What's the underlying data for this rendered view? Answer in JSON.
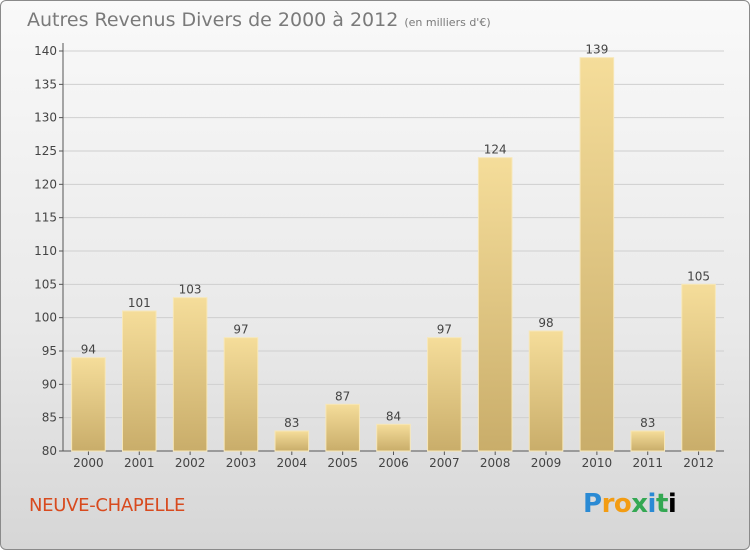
{
  "header": {
    "title": "Autres Revenus Divers de 2000 à 2012",
    "subtitle": "(en milliers d'€)"
  },
  "footer": {
    "commune": "NEUVE-CHAPELLE",
    "logo_text": "Proxiti"
  },
  "colors": {
    "bar_light": "#f5dd9a",
    "bar_dark": "#c9ad6a",
    "commune": "#d84a1e"
  },
  "chart_data": {
    "type": "bar",
    "categories": [
      "2000",
      "2001",
      "2002",
      "2003",
      "2004",
      "2005",
      "2006",
      "2007",
      "2008",
      "2009",
      "2010",
      "2011",
      "2012"
    ],
    "values": [
      94,
      101,
      103,
      97,
      83,
      87,
      84,
      97,
      124,
      98,
      139,
      83,
      105
    ],
    "title": "Autres Revenus Divers de 2000 à 2012",
    "xlabel": "",
    "ylabel": "",
    "ylim": [
      80,
      140
    ],
    "yticks": [
      80,
      85,
      90,
      95,
      100,
      105,
      110,
      115,
      120,
      125,
      130,
      135,
      140
    ],
    "grid": true,
    "legend": "none"
  }
}
